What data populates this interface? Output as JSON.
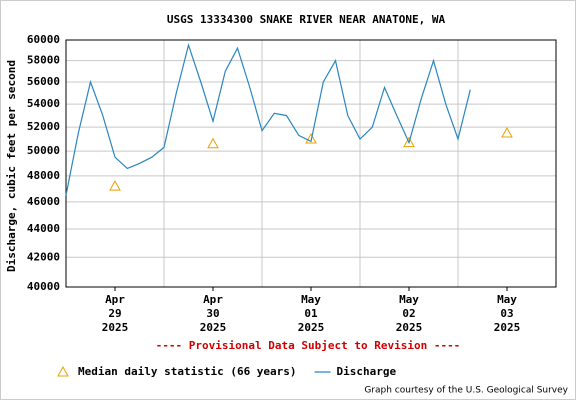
{
  "chart_data": {
    "type": "line",
    "title": "USGS 13334300 SNAKE RIVER NEAR ANATONE, WA",
    "subtitle": "---- Provisional Data Subject to Revision ----",
    "y_label": "Discharge, cubic feet per second",
    "credit": "Graph courtesy of the U.S. Geological Survey",
    "log_scale": true,
    "grid": true,
    "legend_position": "bottom-left",
    "ylim": [
      40000,
      60000
    ],
    "yticks": [
      40000,
      42000,
      44000,
      46000,
      48000,
      50000,
      52000,
      54000,
      56000,
      58000,
      60000
    ],
    "xlim": [
      "2025-04-29T00:00",
      "2025-05-04T00:00"
    ],
    "x_gridlines": [
      "2025-04-30T00:00",
      "2025-05-01T00:00",
      "2025-05-02T00:00",
      "2025-05-03T00:00"
    ],
    "xticks": [
      {
        "value": "2025-04-29T12:00",
        "label": [
          "Apr",
          "29",
          "2025"
        ]
      },
      {
        "value": "2025-04-30T12:00",
        "label": [
          "Apr",
          "30",
          "2025"
        ]
      },
      {
        "value": "2025-05-01T12:00",
        "label": [
          "May",
          "01",
          "2025"
        ]
      },
      {
        "value": "2025-05-02T12:00",
        "label": [
          "May",
          "02",
          "2025"
        ]
      },
      {
        "value": "2025-05-03T12:00",
        "label": [
          "May",
          "03",
          "2025"
        ]
      }
    ],
    "series": [
      {
        "name": "Median daily statistic (66 years)",
        "type": "scatter",
        "marker": "triangle",
        "color": "#e8a000",
        "x": [
          "2025-04-29T12:00",
          "2025-04-30T12:00",
          "2025-05-01T12:00",
          "2025-05-02T12:00",
          "2025-05-03T12:00"
        ],
        "values": [
          47200,
          50600,
          51000,
          50700,
          51500
        ]
      },
      {
        "name": "Discharge",
        "type": "line",
        "color": "#2a86c0",
        "x": [
          "2025-04-29T00:00",
          "2025-04-29T03:00",
          "2025-04-29T06:00",
          "2025-04-29T09:00",
          "2025-04-29T12:00",
          "2025-04-29T15:00",
          "2025-04-29T18:00",
          "2025-04-29T21:00",
          "2025-04-30T00:00",
          "2025-04-30T03:00",
          "2025-04-30T06:00",
          "2025-04-30T09:00",
          "2025-04-30T12:00",
          "2025-04-30T15:00",
          "2025-04-30T18:00",
          "2025-04-30T21:00",
          "2025-05-01T00:00",
          "2025-05-01T03:00",
          "2025-05-01T06:00",
          "2025-05-01T09:00",
          "2025-05-01T12:00",
          "2025-05-01T15:00",
          "2025-05-01T18:00",
          "2025-05-01T21:00",
          "2025-05-02T00:00",
          "2025-05-02T03:00",
          "2025-05-02T06:00",
          "2025-05-02T09:00",
          "2025-05-02T12:00",
          "2025-05-02T15:00",
          "2025-05-02T18:00",
          "2025-05-02T21:00",
          "2025-05-03T00:00",
          "2025-05-03T03:00"
        ],
        "values": [
          46500,
          51500,
          56000,
          53000,
          49500,
          48600,
          49000,
          49500,
          50300,
          55000,
          59500,
          56000,
          52500,
          57000,
          59200,
          55500,
          51700,
          53200,
          53000,
          51300,
          50800,
          56000,
          58000,
          53000,
          51000,
          52000,
          55500,
          53000,
          50700,
          54500,
          58000,
          54000,
          51000,
          55300
        ]
      }
    ]
  }
}
